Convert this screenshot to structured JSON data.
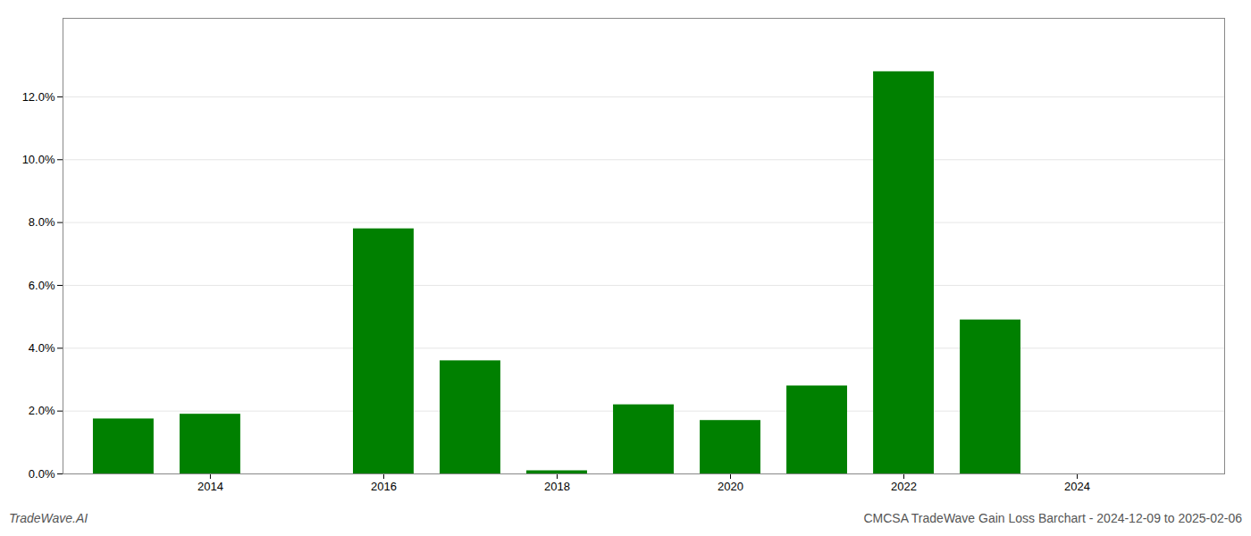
{
  "chart_data": {
    "type": "bar",
    "title": "CMCSA TradeWave Gain Loss Barchart - 2024-12-09 to 2025-02-06",
    "annotations": [
      "TradeWave.AI"
    ],
    "x": [
      2013,
      2014,
      2015,
      2016,
      2017,
      2018,
      2019,
      2020,
      2021,
      2022,
      2023,
      2024
    ],
    "values": [
      0.0175,
      0.019,
      0.0,
      0.078,
      0.036,
      0.001,
      0.022,
      0.017,
      0.028,
      0.128,
      0.049,
      0.0
    ],
    "color": "#008000",
    "xlim": [
      2012.3,
      2025.7
    ],
    "xticks": [
      2014,
      2016,
      2018,
      2020,
      2022,
      2024
    ],
    "ylim": [
      0,
      0.145
    ],
    "yticks": [
      {
        "value": 0.0,
        "label": "0.0%"
      },
      {
        "value": 0.02,
        "label": "2.0%"
      },
      {
        "value": 0.04,
        "label": "4.0%"
      },
      {
        "value": 0.06,
        "label": "6.0%"
      },
      {
        "value": 0.08,
        "label": "8.0%"
      },
      {
        "value": 0.1,
        "label": "10.0%"
      },
      {
        "value": 0.12,
        "label": "12.0%"
      }
    ],
    "grid": true
  }
}
